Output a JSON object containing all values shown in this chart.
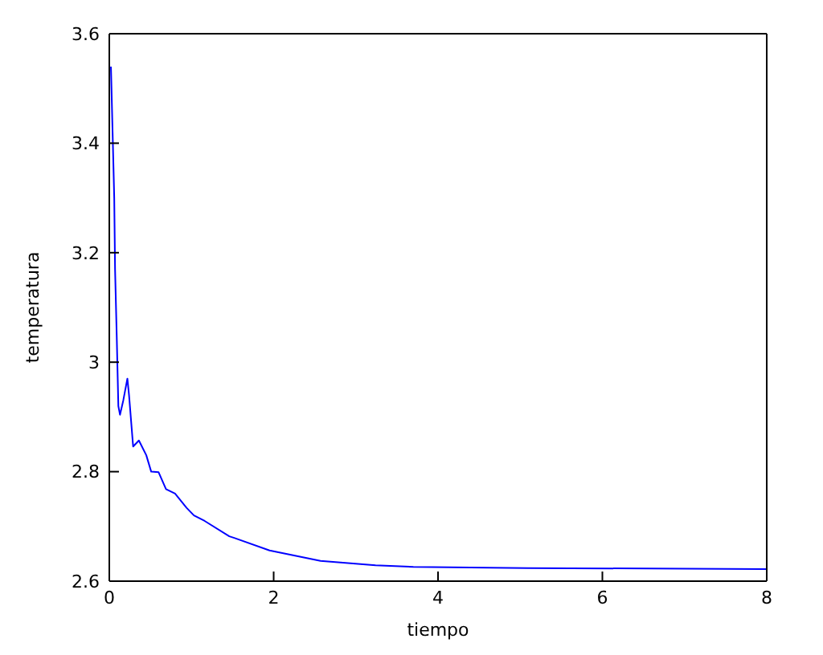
{
  "chart_data": {
    "type": "line",
    "xlabel": "tiempo",
    "ylabel": "temperatura",
    "x": [
      0.02,
      0.04,
      0.06,
      0.07,
      0.09,
      0.11,
      0.13,
      0.17,
      0.22,
      0.24,
      0.29,
      0.36,
      0.45,
      0.51,
      0.6,
      0.69,
      0.8,
      0.94,
      1.03,
      1.16,
      1.46,
      1.52,
      1.95,
      2.57,
      3.24,
      3.7,
      5.09,
      8.0
    ],
    "series": [
      {
        "color": "#0000ff",
        "values": [
          3.54,
          3.42,
          3.3,
          3.17,
          3.05,
          2.92,
          2.904,
          2.93,
          2.97,
          2.94,
          2.846,
          2.857,
          2.83,
          2.8,
          2.799,
          2.768,
          2.76,
          2.734,
          2.72,
          2.71,
          2.682,
          2.679,
          2.656,
          2.637,
          2.629,
          2.626,
          2.624,
          2.622
        ]
      }
    ],
    "xlim": [
      0,
      8
    ],
    "xticks": [
      0,
      2,
      4,
      6,
      8
    ],
    "ylim": [
      2.6,
      3.6
    ],
    "yticks": [
      2.6,
      2.8,
      3,
      3.2,
      3.4,
      3.6
    ],
    "grid": false,
    "legend": false,
    "marker": "none",
    "line_style": "solid"
  }
}
